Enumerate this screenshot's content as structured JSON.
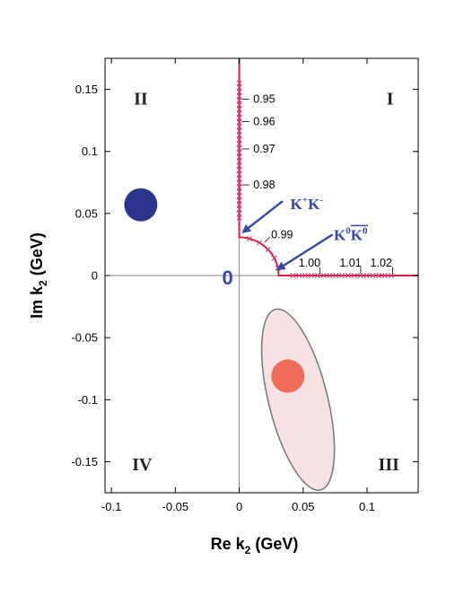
{
  "chart_data": {
    "type": "scatter",
    "xlabel": "Re k",
    "xlabel_sub": "2",
    "xlabel_unit": " (GeV)",
    "ylabel": "Im k",
    "ylabel_sub": "2",
    "ylabel_unit": " (GeV)",
    "xlim": [
      -0.105,
      0.14
    ],
    "ylim": [
      -0.175,
      0.175
    ],
    "x_ticks": [
      {
        "value": -0.1,
        "label": "-0.1"
      },
      {
        "value": -0.05,
        "label": "-0.05"
      },
      {
        "value": 0,
        "label": "0"
      },
      {
        "value": 0.05,
        "label": "0.05"
      },
      {
        "value": 0.1,
        "label": "0.1"
      }
    ],
    "y_ticks": [
      {
        "value": 0.15,
        "label": "0.15"
      },
      {
        "value": 0.1,
        "label": "0.1"
      },
      {
        "value": 0.05,
        "label": "0.05"
      },
      {
        "value": 0,
        "label": "0"
      },
      {
        "value": -0.05,
        "label": "-0.05"
      },
      {
        "value": -0.1,
        "label": "-0.1"
      },
      {
        "value": -0.15,
        "label": "-0.15"
      }
    ],
    "origin_label": "0",
    "quadrants": [
      {
        "label": "I",
        "x": 0.118,
        "y": 0.143
      },
      {
        "label": "II",
        "x": -0.077,
        "y": 0.143
      },
      {
        "label": "III",
        "x": 0.117,
        "y": -0.152
      },
      {
        "label": "IV",
        "x": -0.076,
        "y": -0.152
      }
    ],
    "poles": [
      {
        "name": "blue-pole",
        "x": -0.077,
        "y": 0.057,
        "r": 0.0048,
        "color": "#2a3590"
      },
      {
        "name": "red-pole",
        "x": 0.038,
        "y": -0.081,
        "r": 0.0048,
        "color": "#ef6d58"
      }
    ],
    "ellipse": {
      "cx": 0.046,
      "cy": -0.1,
      "rx": 0.023,
      "ry": 0.075,
      "angle_deg": -14,
      "fill": "#f7e2e3",
      "stroke": "#777777"
    },
    "trajectory_color": "#e0203a",
    "cross_color": "#c43c80",
    "threshold_radius": 0.0308,
    "energy_labels": [
      {
        "label": "0.95",
        "x": 0.011,
        "y": 0.142
      },
      {
        "label": "0.96",
        "x": 0.011,
        "y": 0.124
      },
      {
        "label": "0.97",
        "x": 0.011,
        "y": 0.102
      },
      {
        "label": "0.98",
        "x": 0.011,
        "y": 0.073
      },
      {
        "label": "0.99",
        "x": 0.025,
        "y": 0.033
      },
      {
        "label": "1.00",
        "x": 0.055,
        "y": 0.01
      },
      {
        "label": "1.01",
        "x": 0.087,
        "y": 0.01
      },
      {
        "label": "1.02",
        "x": 0.111,
        "y": 0.01
      }
    ],
    "thresholds": [
      {
        "label": "K",
        "sup1": "+",
        "label2": "K",
        "sup2": "-",
        "overline": false,
        "tx": 0.04,
        "ty": 0.058,
        "ax1": 0.034,
        "ay1": 0.06,
        "ax2": 0.003,
        "ay2": 0.035
      },
      {
        "label": "K",
        "sup1": "0",
        "label2": "K",
        "sup2": "0",
        "overline": true,
        "tx": 0.074,
        "ty": 0.033,
        "ax1": 0.073,
        "ay1": 0.033,
        "ax2": 0.03,
        "ay2": 0.005
      }
    ]
  }
}
